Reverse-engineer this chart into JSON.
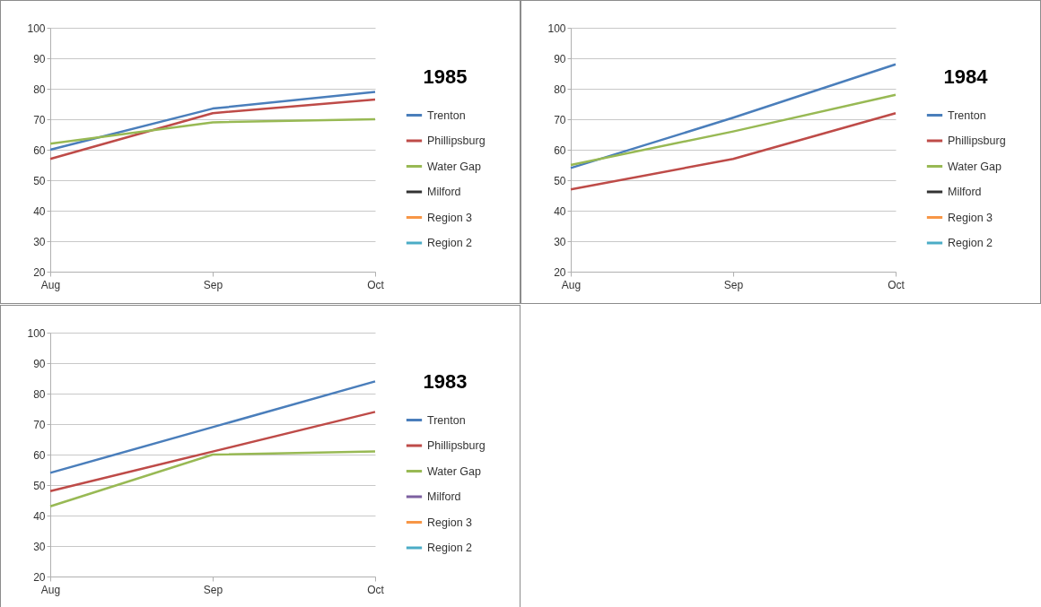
{
  "chart_data": [
    {
      "type": "line",
      "legend_title": "1985",
      "categories": [
        "Aug",
        "Sep",
        "Oct"
      ],
      "ylim": [
        20,
        100
      ],
      "yticks": [
        20,
        30,
        40,
        50,
        60,
        70,
        80,
        90,
        100
      ],
      "grid": "y",
      "legend": "right",
      "series": [
        {
          "name": "Trenton",
          "color": "#4a7ebb",
          "values": [
            60,
            73.5,
            79
          ]
        },
        {
          "name": "Phillipsburg",
          "color": "#be4b48",
          "values": [
            57,
            72,
            76.5
          ]
        },
        {
          "name": "Water Gap",
          "color": "#98b954",
          "values": [
            62,
            69,
            70
          ]
        },
        {
          "name": "Milford",
          "color": "#333333",
          "values": [
            null,
            null,
            null
          ]
        },
        {
          "name": "Region 3",
          "color": "#f79646",
          "values": [
            null,
            null,
            null
          ]
        },
        {
          "name": "Region 2",
          "color": "#4bacc6",
          "values": [
            null,
            null,
            null
          ]
        }
      ]
    },
    {
      "type": "line",
      "legend_title": "1984",
      "categories": [
        "Aug",
        "Sep",
        "Oct"
      ],
      "ylim": [
        20,
        100
      ],
      "yticks": [
        20,
        30,
        40,
        50,
        60,
        70,
        80,
        90,
        100
      ],
      "grid": "y",
      "legend": "right",
      "series": [
        {
          "name": "Trenton",
          "color": "#4a7ebb",
          "values": [
            54,
            70.5,
            88
          ]
        },
        {
          "name": "Phillipsburg",
          "color": "#be4b48",
          "values": [
            47,
            57,
            72
          ]
        },
        {
          "name": "Water Gap",
          "color": "#98b954",
          "values": [
            55,
            66,
            78
          ]
        },
        {
          "name": "Milford",
          "color": "#333333",
          "values": [
            null,
            null,
            null
          ]
        },
        {
          "name": "Region 3",
          "color": "#f79646",
          "values": [
            null,
            null,
            null
          ]
        },
        {
          "name": "Region 2",
          "color": "#4bacc6",
          "values": [
            null,
            null,
            null
          ]
        }
      ]
    },
    {
      "type": "line",
      "legend_title": "1983",
      "categories": [
        "Aug",
        "Sep",
        "Oct"
      ],
      "ylim": [
        20,
        100
      ],
      "yticks": [
        20,
        30,
        40,
        50,
        60,
        70,
        80,
        90,
        100
      ],
      "grid": "y",
      "legend": "right",
      "series": [
        {
          "name": "Trenton",
          "color": "#4a7ebb",
          "values": [
            54,
            69,
            84
          ]
        },
        {
          "name": "Phillipsburg",
          "color": "#be4b48",
          "values": [
            48,
            61,
            74
          ]
        },
        {
          "name": "Water Gap",
          "color": "#98b954",
          "values": [
            43,
            60,
            61
          ]
        },
        {
          "name": "Milford",
          "color": "#7d60a0",
          "values": [
            null,
            null,
            null
          ]
        },
        {
          "name": "Region 3",
          "color": "#f79646",
          "values": [
            null,
            null,
            null
          ]
        },
        {
          "name": "Region 2",
          "color": "#4bacc6",
          "values": [
            null,
            null,
            null
          ]
        }
      ]
    }
  ]
}
